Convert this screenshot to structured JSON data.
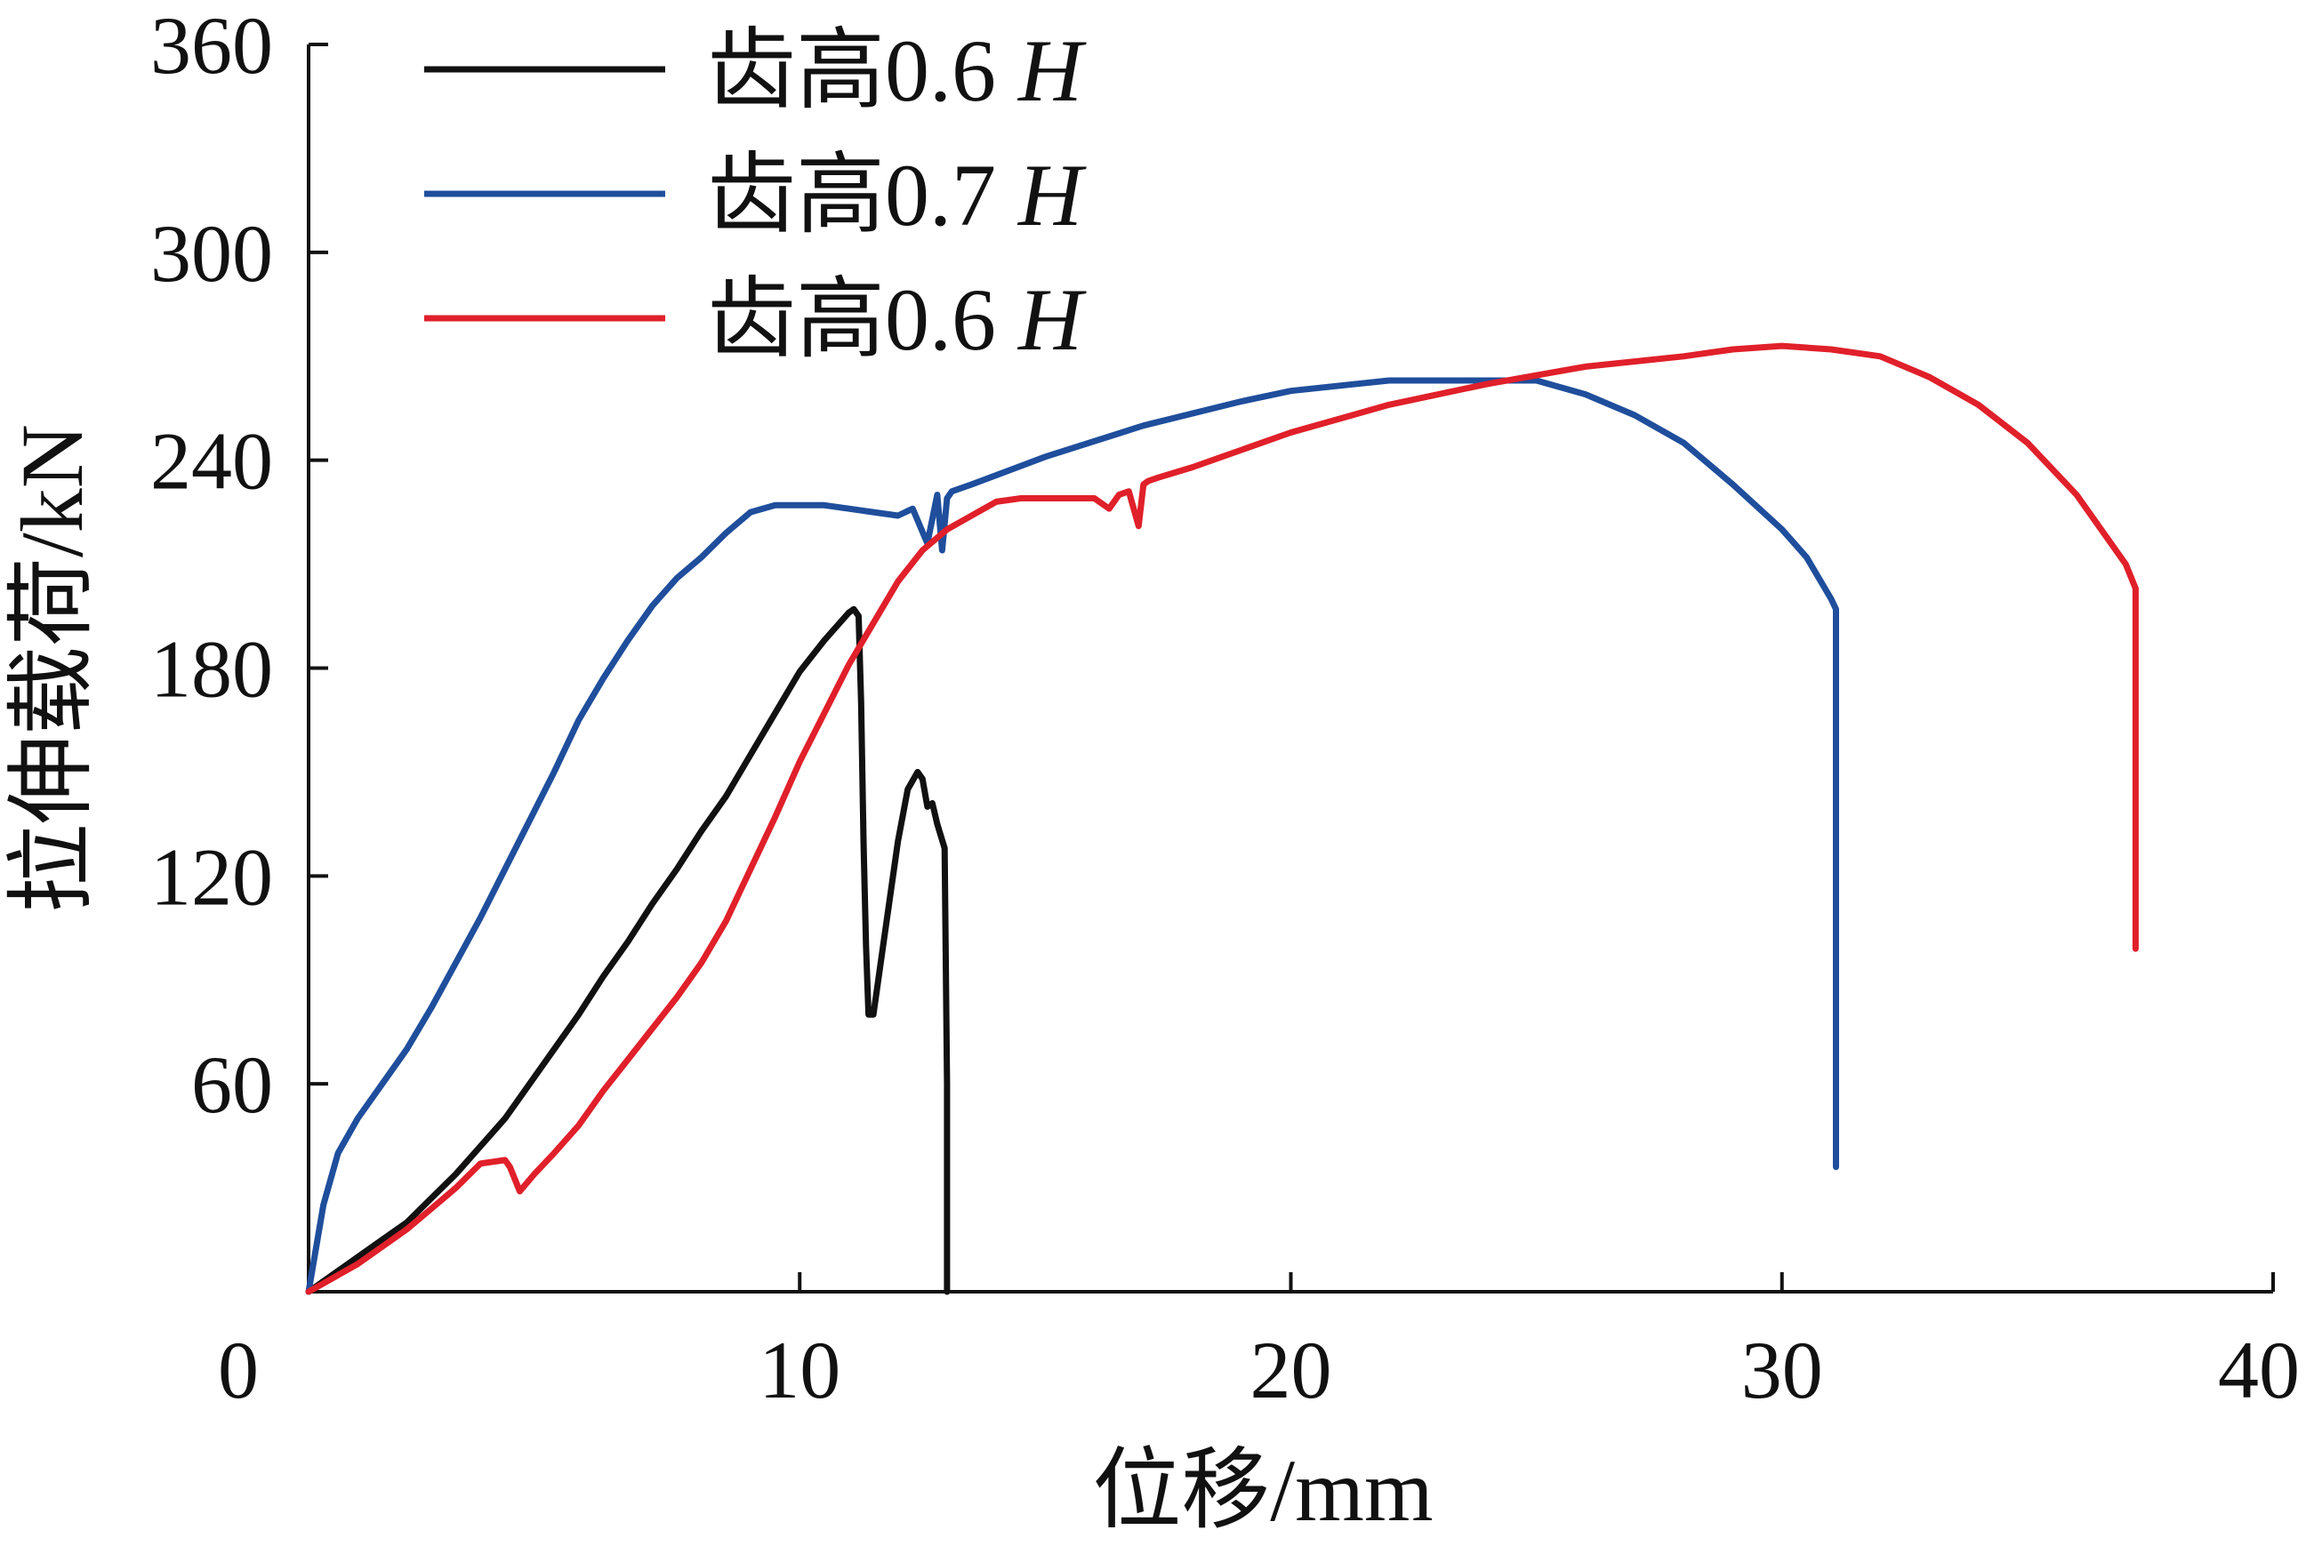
{
  "chart_data": {
    "type": "line",
    "title": "",
    "xlabel": "位移/mm",
    "ylabel": "拉伸载荷/kN",
    "xlim": [
      0,
      40
    ],
    "ylim": [
      0,
      360
    ],
    "xticks": [
      "0",
      "10",
      "20",
      "30",
      "40"
    ],
    "yticks": [
      "60",
      "120",
      "180",
      "240",
      "300",
      "360"
    ],
    "grid": false,
    "legend_position": "top-left",
    "series": [
      {
        "name": "齿高0.6",
        "name_suffix": "H",
        "color": "#111111",
        "x": [
          0,
          0.5,
          1,
          1.5,
          2,
          2.5,
          3,
          3.5,
          4,
          4.5,
          5,
          5.5,
          6,
          6.5,
          7,
          7.5,
          8,
          8.5,
          9,
          9.5,
          10,
          10.5,
          11,
          11.1,
          11.2,
          11.25,
          11.3,
          11.35,
          11.4,
          11.5,
          11.7,
          12,
          12.2,
          12.4,
          12.5,
          12.6,
          12.7,
          12.8,
          12.95,
          13.0,
          13.0
        ],
        "y": [
          0,
          5,
          10,
          15,
          20,
          27,
          34,
          42,
          50,
          60,
          70,
          80,
          91,
          101,
          112,
          122,
          133,
          143,
          155,
          167,
          179,
          188,
          196,
          197,
          195,
          170,
          130,
          100,
          80,
          80,
          100,
          130,
          145,
          150,
          148,
          140,
          141,
          135,
          128,
          60,
          0
        ]
      },
      {
        "name": "齿高0.7",
        "name_suffix": "H",
        "color": "#1f4e9c",
        "x": [
          0,
          0.3,
          0.6,
          1,
          1.5,
          2,
          2.5,
          3,
          3.5,
          4,
          4.5,
          5,
          5.5,
          6,
          6.5,
          7,
          7.5,
          8,
          8.5,
          9,
          9.5,
          10,
          10.5,
          11,
          11.5,
          12,
          12.3,
          12.6,
          12.8,
          12.9,
          13.0,
          13.1,
          13.5,
          15,
          17,
          19,
          20,
          22,
          24,
          25,
          26,
          27,
          28,
          29,
          30,
          30.5,
          31,
          31.1,
          31.1,
          31.1
        ],
        "y": [
          0,
          25,
          40,
          50,
          60,
          70,
          82,
          95,
          108,
          122,
          136,
          150,
          165,
          177,
          188,
          198,
          206,
          212,
          219,
          225,
          227,
          227,
          227,
          226,
          225,
          224,
          226,
          216,
          230,
          214,
          229,
          231,
          233,
          241,
          250,
          257,
          260,
          263,
          263,
          263,
          259,
          253,
          245,
          233,
          220,
          212,
          200,
          197,
          120,
          36
        ]
      },
      {
        "name": "齿高0.6",
        "name_suffix": "H",
        "color": "#e0202a",
        "x": [
          0,
          0.5,
          1,
          1.5,
          2,
          2.5,
          3,
          3.5,
          4,
          4.1,
          4.3,
          4.6,
          5,
          5.5,
          6,
          6.5,
          7,
          7.5,
          8,
          8.5,
          9,
          9.5,
          10,
          10.5,
          11,
          11.5,
          12,
          12.5,
          13,
          13.5,
          14,
          14.5,
          15,
          15.5,
          16,
          16.3,
          16.5,
          16.7,
          16.9,
          17.0,
          17.1,
          17.3,
          18,
          19,
          20,
          22,
          24,
          26,
          28,
          29,
          30,
          31,
          32,
          33,
          34,
          35,
          36,
          36.5,
          37,
          37.2,
          37.2,
          37.2
        ],
        "y": [
          0,
          4,
          8,
          13,
          18,
          24,
          30,
          37,
          38,
          36,
          29,
          34,
          40,
          48,
          58,
          67,
          76,
          85,
          95,
          107,
          122,
          137,
          153,
          167,
          181,
          193,
          205,
          214,
          220,
          224,
          228,
          229,
          229,
          229,
          229,
          226,
          230,
          231,
          221,
          233,
          234,
          235,
          238,
          243,
          248,
          256,
          262,
          267,
          270,
          272,
          273,
          272,
          270,
          264,
          256,
          245,
          230,
          220,
          210,
          203,
          150,
          99
        ]
      }
    ]
  }
}
